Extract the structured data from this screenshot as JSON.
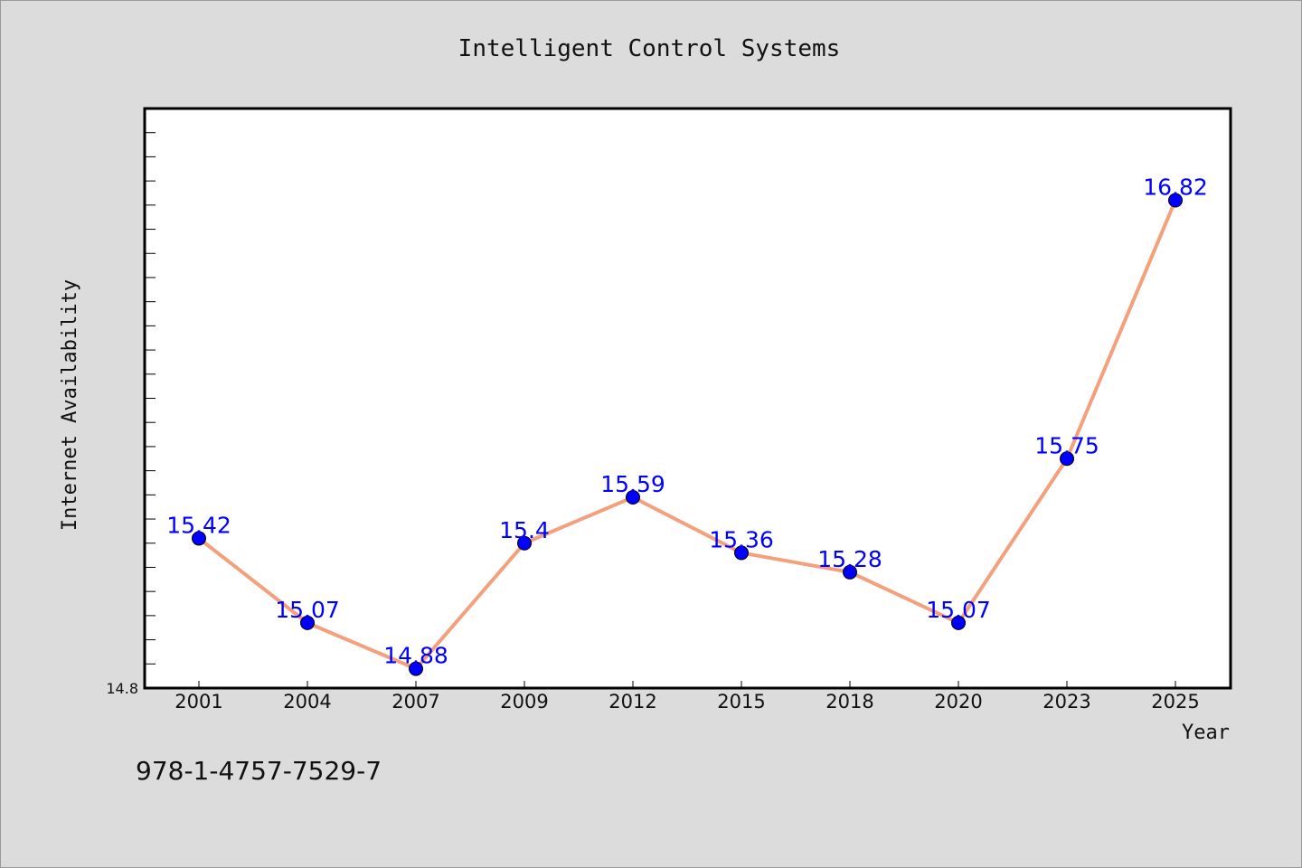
{
  "chart_data": {
    "type": "line",
    "title": "Intelligent Control Systems",
    "xlabel": "Year",
    "ylabel": "Internet Availability",
    "categories": [
      "2001",
      "2004",
      "2007",
      "2009",
      "2012",
      "2015",
      "2018",
      "2020",
      "2023",
      "2025"
    ],
    "series": [
      {
        "values": [
          15.42,
          15.07,
          14.88,
          15.4,
          15.59,
          15.36,
          15.28,
          15.07,
          15.75,
          16.82
        ],
        "labels": [
          "15.42",
          "15.07",
          "14.88",
          "15.4",
          "15.59",
          "15.36",
          "15.28",
          "15.07",
          "15.75",
          "16.82"
        ]
      }
    ],
    "ylim": [
      14.8,
      17.2
    ],
    "yticks_labeled": [
      "14.8"
    ],
    "line_color": "#f4a07c",
    "marker_color": "#0000ff",
    "label_color": "#0000ff",
    "grid": false,
    "legend": false
  },
  "footer": {
    "isbn": "978-1-4757-7529-7"
  },
  "colors": {
    "background": "#dcdcdc",
    "plot_background": "#ffffff"
  }
}
